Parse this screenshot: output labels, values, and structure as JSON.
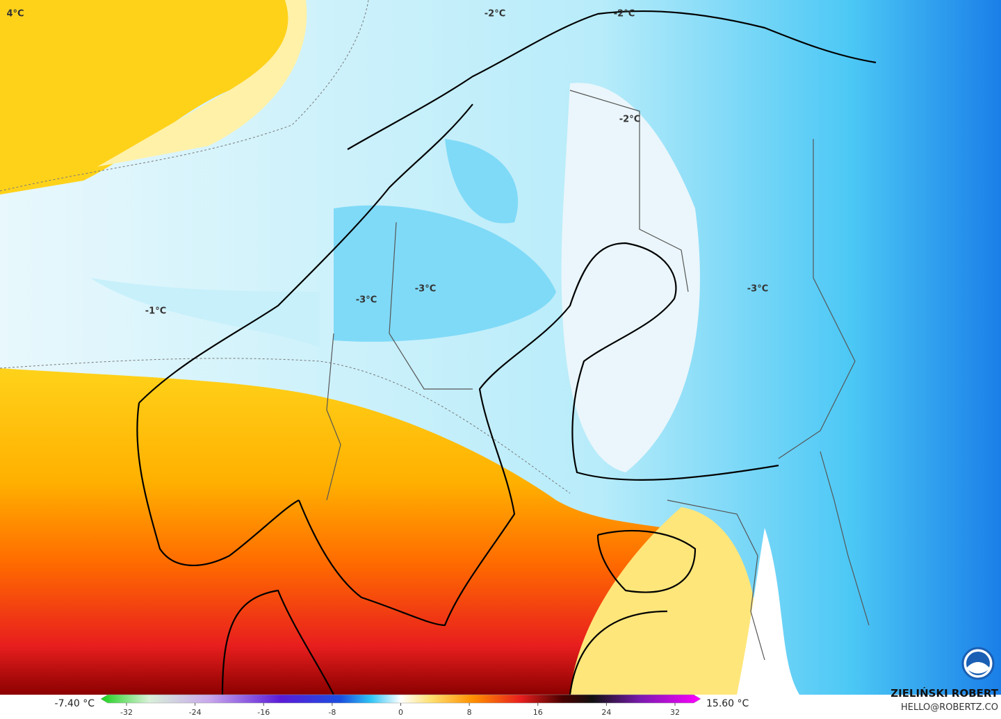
{
  "map": {
    "contour_labels": [
      "4°C",
      "-2°C",
      "-2°C",
      "-2°C",
      "-1°C",
      "-3°C",
      "-3°C",
      "-3°C"
    ]
  },
  "colorbar": {
    "min_label": "-7.40 °C",
    "max_label": "15.60 °C",
    "range": [
      -35,
      35
    ],
    "ticks": [
      -32,
      -24,
      -16,
      -8,
      0,
      8,
      16,
      24,
      32
    ]
  },
  "credit": {
    "name": "ZIELIŃSKI ROBERT",
    "email": "HELLO@ROBERTZ.CO"
  }
}
